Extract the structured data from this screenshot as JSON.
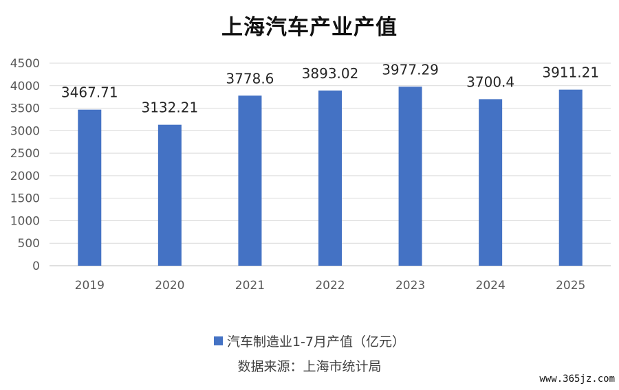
{
  "chart_data": {
    "type": "bar",
    "title": "上海汽车产业产值",
    "categories": [
      "2019",
      "2020",
      "2021",
      "2022",
      "2023",
      "2024",
      "2025"
    ],
    "series": [
      {
        "name": "汽车制造业1-7月产值（亿元）",
        "values": [
          3467.71,
          3132.21,
          3778.6,
          3893.02,
          3977.29,
          3700.4,
          3911.21
        ],
        "labels": [
          "3467.71",
          "3132.21",
          "3778.6",
          "3893.02",
          "3977.29",
          "3700.4",
          "3911.21"
        ],
        "color": "#4472c4"
      }
    ],
    "ylim": [
      0,
      4500
    ],
    "yticks": [
      "0",
      "500",
      "1000",
      "1500",
      "2000",
      "2500",
      "3000",
      "3500",
      "4000",
      "4500"
    ],
    "grid": true,
    "legend_position": "bottom"
  },
  "source_text": "数据来源：上海市统计局",
  "watermark": "www.365jz.com"
}
